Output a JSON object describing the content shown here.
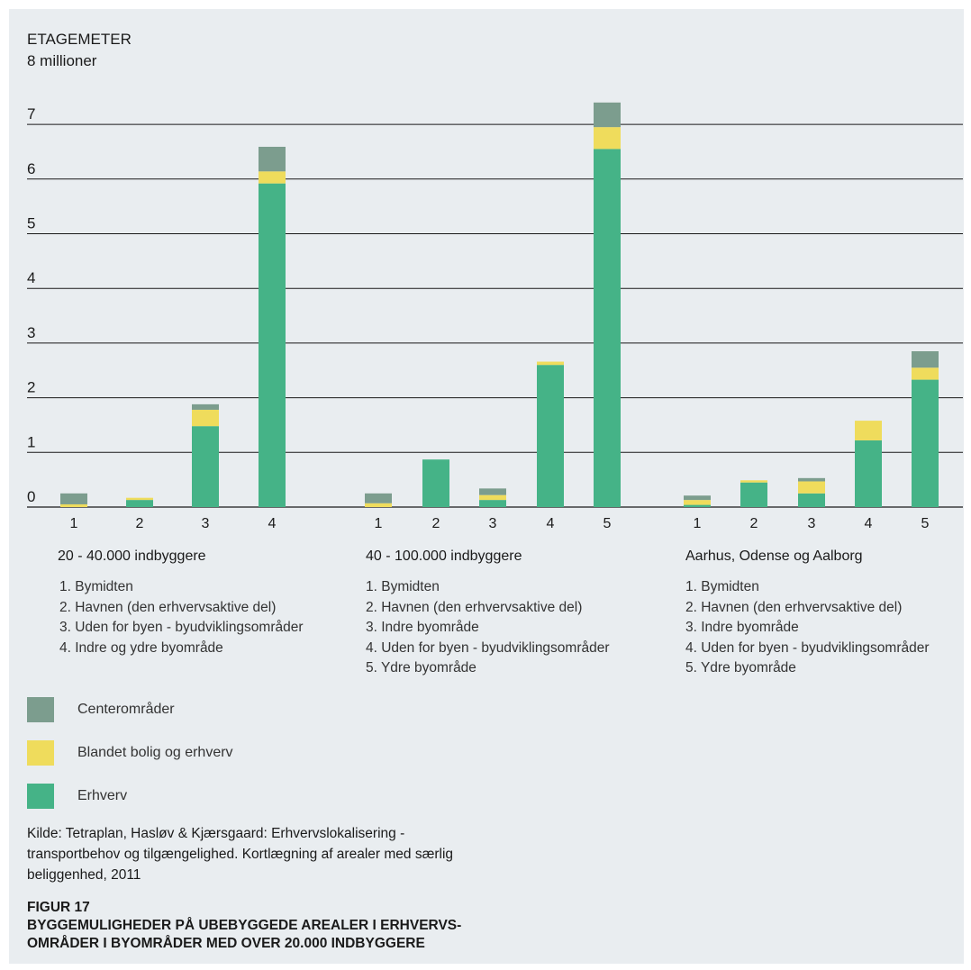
{
  "chart_data": {
    "type": "bar",
    "stacked": true,
    "unit_label": "ETAGEMETER",
    "top_tick_label": "8 millioner",
    "y_ticks": [
      "0",
      "1",
      "2",
      "3",
      "4",
      "5",
      "6",
      "7"
    ],
    "ylim": [
      0,
      8
    ],
    "grid": true,
    "series_names": [
      "Erhverv",
      "Blandet bolig og erhverv",
      "Centerområder"
    ],
    "series_colors": [
      "#45b387",
      "#efdc5c",
      "#7c9d8e"
    ],
    "groups": [
      {
        "title": "20 - 40.000 indbyggere",
        "categories": [
          "1",
          "2",
          "3",
          "4"
        ],
        "descriptions": [
          "1. Bymidten",
          "2. Havnen (den erhvervsaktive del)",
          "3. Uden for byen - byudviklingsområder",
          "4. Indre og ydre byområde"
        ],
        "series": [
          {
            "name": "Erhverv",
            "values": [
              0.0,
              0.13,
              1.48,
              5.92
            ]
          },
          {
            "name": "Blandet bolig og erhverv",
            "values": [
              0.05,
              0.04,
              0.3,
              0.22
            ]
          },
          {
            "name": "Centerområder",
            "values": [
              0.2,
              0.0,
              0.1,
              0.45
            ]
          }
        ]
      },
      {
        "title": "40 - 100.000 indbyggere",
        "categories": [
          "1",
          "2",
          "3",
          "4",
          "5"
        ],
        "descriptions": [
          "1. Bymidten",
          "2. Havnen (den erhvervsaktive del)",
          "3. Indre byområde",
          "4. Uden for byen - byudviklingsområder",
          "5. Ydre byområde"
        ],
        "series": [
          {
            "name": "Erhverv",
            "values": [
              0.0,
              0.87,
              0.13,
              2.6,
              6.55
            ]
          },
          {
            "name": "Blandet bolig og erhverv",
            "values": [
              0.07,
              0.0,
              0.09,
              0.06,
              0.4
            ]
          },
          {
            "name": "Centerområder",
            "values": [
              0.18,
              0.0,
              0.12,
              0.0,
              0.45
            ]
          }
        ]
      },
      {
        "title": "Aarhus, Odense og Aalborg",
        "categories": [
          "1",
          "2",
          "3",
          "4",
          "5"
        ],
        "descriptions": [
          "1. Bymidten",
          "2. Havnen (den erhvervsaktive del)",
          "3. Indre byområde",
          "4. Uden for byen - byudviklingsområder",
          "5. Ydre byområde"
        ],
        "series": [
          {
            "name": "Erhverv",
            "values": [
              0.04,
              0.45,
              0.25,
              1.22,
              2.33
            ]
          },
          {
            "name": "Blandet bolig og erhverv",
            "values": [
              0.09,
              0.04,
              0.22,
              0.36,
              0.22
            ]
          },
          {
            "name": "Centerområder",
            "values": [
              0.08,
              0.0,
              0.06,
              0.0,
              0.3
            ]
          }
        ]
      }
    ]
  },
  "legend": [
    {
      "label": "Centerområder",
      "color": "#7c9d8e"
    },
    {
      "label": "Blandet bolig og erhverv",
      "color": "#efdc5c"
    },
    {
      "label": "Erhverv",
      "color": "#45b387"
    }
  ],
  "source": "Kilde: Tetraplan, Hasløv & Kjærsgaard: Erhvervslokalisering - transportbehov og tilgængelighed. Kortlægning af arealer med særlig beliggenhed, 2011",
  "figure": {
    "number": "FIGUR 17",
    "caption": "BYGGEMULIGHEDER PÅ UBEBYGGEDE AREALER I ERHVERVS-OMRÅDER I BYOMRÅDER MED OVER 20.000 INDBYGGERE"
  }
}
